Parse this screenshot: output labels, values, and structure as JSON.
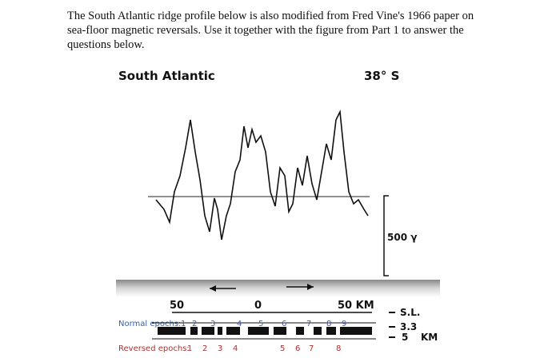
{
  "text": {
    "lines": [
      "The South Atlantic ridge profile below is also modified from Fred Vine's 1966 paper on",
      "sea-floor magnetic reversals. Use it together with the figure from Part 1 to answer the",
      "questions below."
    ]
  },
  "figure": {
    "title": "South Atlantic",
    "latitude": "38° S",
    "amplitude_scale": "500 γ",
    "distance_labels": [
      "50",
      "0",
      "50 KM"
    ],
    "normal_label": "Normal epochs:",
    "normal_numbers": [
      "1",
      "2",
      "3",
      "4",
      "5",
      "6",
      "7",
      "8",
      "9"
    ],
    "reversed_label": "Reversed epochs:",
    "reversed_numbers": [
      "1",
      "2",
      "3",
      "4",
      "5",
      "6",
      "7",
      "8"
    ],
    "depth_labels": [
      "S.L.",
      "3.3",
      "5",
      "KM"
    ]
  }
}
